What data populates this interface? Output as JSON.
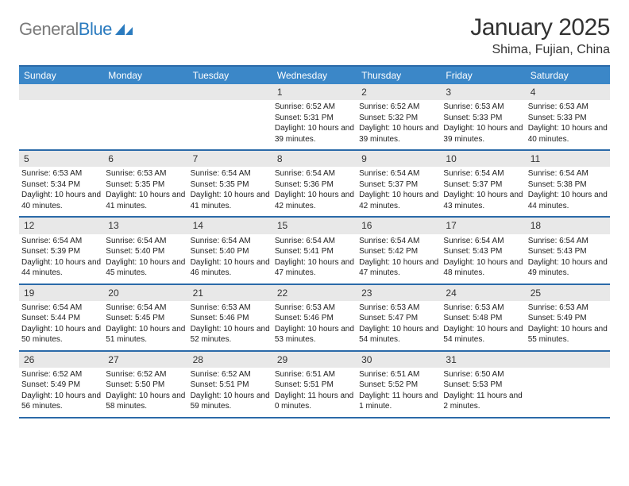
{
  "logo": {
    "gray": "General",
    "blue": "Blue"
  },
  "title": "January 2025",
  "subtitle": "Shima, Fujian, China",
  "colors": {
    "header_bg": "#3b87c8",
    "header_text": "#ffffff",
    "border": "#2b6aa8",
    "daynum_bg": "#e8e8e8",
    "body_text": "#222222",
    "page_bg": "#ffffff"
  },
  "fonts": {
    "title_size": 30,
    "subtitle_size": 16,
    "header_size": 12,
    "daynum_size": 12,
    "info_size": 10
  },
  "day_headers": [
    "Sunday",
    "Monday",
    "Tuesday",
    "Wednesday",
    "Thursday",
    "Friday",
    "Saturday"
  ],
  "weeks": [
    [
      null,
      null,
      null,
      {
        "n": "1",
        "sr": "6:52 AM",
        "ss": "5:31 PM",
        "dl": "10 hours and 39 minutes."
      },
      {
        "n": "2",
        "sr": "6:52 AM",
        "ss": "5:32 PM",
        "dl": "10 hours and 39 minutes."
      },
      {
        "n": "3",
        "sr": "6:53 AM",
        "ss": "5:33 PM",
        "dl": "10 hours and 39 minutes."
      },
      {
        "n": "4",
        "sr": "6:53 AM",
        "ss": "5:33 PM",
        "dl": "10 hours and 40 minutes."
      }
    ],
    [
      {
        "n": "5",
        "sr": "6:53 AM",
        "ss": "5:34 PM",
        "dl": "10 hours and 40 minutes."
      },
      {
        "n": "6",
        "sr": "6:53 AM",
        "ss": "5:35 PM",
        "dl": "10 hours and 41 minutes."
      },
      {
        "n": "7",
        "sr": "6:54 AM",
        "ss": "5:35 PM",
        "dl": "10 hours and 41 minutes."
      },
      {
        "n": "8",
        "sr": "6:54 AM",
        "ss": "5:36 PM",
        "dl": "10 hours and 42 minutes."
      },
      {
        "n": "9",
        "sr": "6:54 AM",
        "ss": "5:37 PM",
        "dl": "10 hours and 42 minutes."
      },
      {
        "n": "10",
        "sr": "6:54 AM",
        "ss": "5:37 PM",
        "dl": "10 hours and 43 minutes."
      },
      {
        "n": "11",
        "sr": "6:54 AM",
        "ss": "5:38 PM",
        "dl": "10 hours and 44 minutes."
      }
    ],
    [
      {
        "n": "12",
        "sr": "6:54 AM",
        "ss": "5:39 PM",
        "dl": "10 hours and 44 minutes."
      },
      {
        "n": "13",
        "sr": "6:54 AM",
        "ss": "5:40 PM",
        "dl": "10 hours and 45 minutes."
      },
      {
        "n": "14",
        "sr": "6:54 AM",
        "ss": "5:40 PM",
        "dl": "10 hours and 46 minutes."
      },
      {
        "n": "15",
        "sr": "6:54 AM",
        "ss": "5:41 PM",
        "dl": "10 hours and 47 minutes."
      },
      {
        "n": "16",
        "sr": "6:54 AM",
        "ss": "5:42 PM",
        "dl": "10 hours and 47 minutes."
      },
      {
        "n": "17",
        "sr": "6:54 AM",
        "ss": "5:43 PM",
        "dl": "10 hours and 48 minutes."
      },
      {
        "n": "18",
        "sr": "6:54 AM",
        "ss": "5:43 PM",
        "dl": "10 hours and 49 minutes."
      }
    ],
    [
      {
        "n": "19",
        "sr": "6:54 AM",
        "ss": "5:44 PM",
        "dl": "10 hours and 50 minutes."
      },
      {
        "n": "20",
        "sr": "6:54 AM",
        "ss": "5:45 PM",
        "dl": "10 hours and 51 minutes."
      },
      {
        "n": "21",
        "sr": "6:53 AM",
        "ss": "5:46 PM",
        "dl": "10 hours and 52 minutes."
      },
      {
        "n": "22",
        "sr": "6:53 AM",
        "ss": "5:46 PM",
        "dl": "10 hours and 53 minutes."
      },
      {
        "n": "23",
        "sr": "6:53 AM",
        "ss": "5:47 PM",
        "dl": "10 hours and 54 minutes."
      },
      {
        "n": "24",
        "sr": "6:53 AM",
        "ss": "5:48 PM",
        "dl": "10 hours and 54 minutes."
      },
      {
        "n": "25",
        "sr": "6:53 AM",
        "ss": "5:49 PM",
        "dl": "10 hours and 55 minutes."
      }
    ],
    [
      {
        "n": "26",
        "sr": "6:52 AM",
        "ss": "5:49 PM",
        "dl": "10 hours and 56 minutes."
      },
      {
        "n": "27",
        "sr": "6:52 AM",
        "ss": "5:50 PM",
        "dl": "10 hours and 58 minutes."
      },
      {
        "n": "28",
        "sr": "6:52 AM",
        "ss": "5:51 PM",
        "dl": "10 hours and 59 minutes."
      },
      {
        "n": "29",
        "sr": "6:51 AM",
        "ss": "5:51 PM",
        "dl": "11 hours and 0 minutes."
      },
      {
        "n": "30",
        "sr": "6:51 AM",
        "ss": "5:52 PM",
        "dl": "11 hours and 1 minute."
      },
      {
        "n": "31",
        "sr": "6:50 AM",
        "ss": "5:53 PM",
        "dl": "11 hours and 2 minutes."
      },
      null
    ]
  ],
  "labels": {
    "sunrise": "Sunrise:",
    "sunset": "Sunset:",
    "daylight": "Daylight:"
  }
}
